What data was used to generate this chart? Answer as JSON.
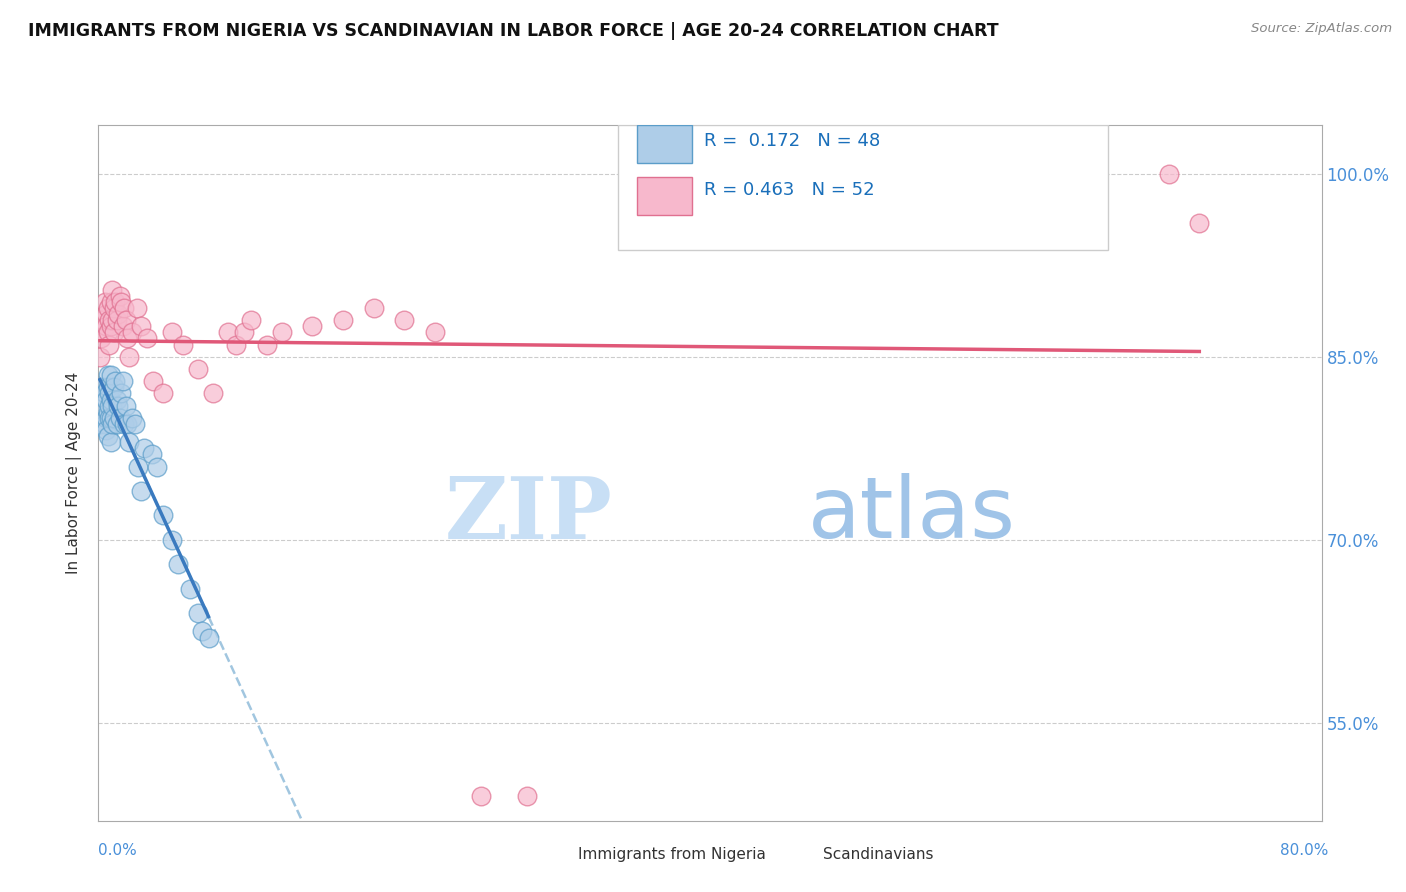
{
  "title": "IMMIGRANTS FROM NIGERIA VS SCANDINAVIAN IN LABOR FORCE | AGE 20-24 CORRELATION CHART",
  "source": "Source: ZipAtlas.com",
  "ylabel": "In Labor Force | Age 20-24",
  "yaxis_ticks": [
    0.55,
    0.7,
    0.85,
    1.0
  ],
  "yaxis_labels": [
    "55.0%",
    "70.0%",
    "85.0%",
    "100.0%"
  ],
  "legend1_label": "Immigrants from Nigeria",
  "legend2_label": "Scandinavians",
  "r1": 0.172,
  "n1": 48,
  "r2": 0.463,
  "n2": 52,
  "color_blue_fill": "#aecde8",
  "color_blue_edge": "#5b9dc9",
  "color_pink_fill": "#f7b8cc",
  "color_pink_edge": "#e07090",
  "color_blue_line": "#3a7abf",
  "color_pink_line": "#e05878",
  "color_dashed": "#8ab8d8",
  "watermark_zip": "ZIP",
  "watermark_atlas": "atlas",
  "xlim": [
    0.0,
    0.8
  ],
  "ylim": [
    0.47,
    1.04
  ],
  "nigeria_x": [
    0.001,
    0.002,
    0.003,
    0.004,
    0.004,
    0.005,
    0.005,
    0.005,
    0.006,
    0.006,
    0.006,
    0.006,
    0.007,
    0.007,
    0.007,
    0.008,
    0.008,
    0.008,
    0.008,
    0.009,
    0.009,
    0.01,
    0.01,
    0.011,
    0.012,
    0.012,
    0.013,
    0.014,
    0.015,
    0.016,
    0.017,
    0.018,
    0.019,
    0.02,
    0.022,
    0.024,
    0.026,
    0.028,
    0.03,
    0.035,
    0.038,
    0.042,
    0.048,
    0.052,
    0.06,
    0.065,
    0.068,
    0.072
  ],
  "nigeria_y": [
    0.795,
    0.81,
    0.825,
    0.795,
    0.82,
    0.815,
    0.8,
    0.79,
    0.835,
    0.825,
    0.805,
    0.785,
    0.82,
    0.81,
    0.8,
    0.835,
    0.815,
    0.8,
    0.78,
    0.81,
    0.795,
    0.825,
    0.8,
    0.83,
    0.815,
    0.795,
    0.81,
    0.8,
    0.82,
    0.83,
    0.795,
    0.81,
    0.795,
    0.78,
    0.8,
    0.795,
    0.76,
    0.74,
    0.775,
    0.77,
    0.76,
    0.72,
    0.7,
    0.68,
    0.66,
    0.64,
    0.625,
    0.62
  ],
  "scand_x": [
    0.001,
    0.002,
    0.003,
    0.003,
    0.004,
    0.005,
    0.005,
    0.006,
    0.006,
    0.007,
    0.007,
    0.008,
    0.008,
    0.009,
    0.009,
    0.01,
    0.01,
    0.011,
    0.012,
    0.013,
    0.014,
    0.015,
    0.016,
    0.017,
    0.018,
    0.019,
    0.02,
    0.022,
    0.025,
    0.028,
    0.032,
    0.036,
    0.042,
    0.048,
    0.055,
    0.065,
    0.075,
    0.085,
    0.09,
    0.095,
    0.1,
    0.11,
    0.12,
    0.14,
    0.16,
    0.18,
    0.2,
    0.22,
    0.25,
    0.28,
    0.7,
    0.72
  ],
  "scand_y": [
    0.85,
    0.865,
    0.87,
    0.88,
    0.895,
    0.885,
    0.875,
    0.89,
    0.87,
    0.88,
    0.86,
    0.895,
    0.875,
    0.905,
    0.88,
    0.89,
    0.87,
    0.895,
    0.88,
    0.885,
    0.9,
    0.895,
    0.875,
    0.89,
    0.88,
    0.865,
    0.85,
    0.87,
    0.89,
    0.875,
    0.865,
    0.83,
    0.82,
    0.87,
    0.86,
    0.84,
    0.82,
    0.87,
    0.86,
    0.87,
    0.88,
    0.86,
    0.87,
    0.875,
    0.88,
    0.89,
    0.88,
    0.87,
    0.49,
    0.49,
    1.0,
    0.96
  ]
}
